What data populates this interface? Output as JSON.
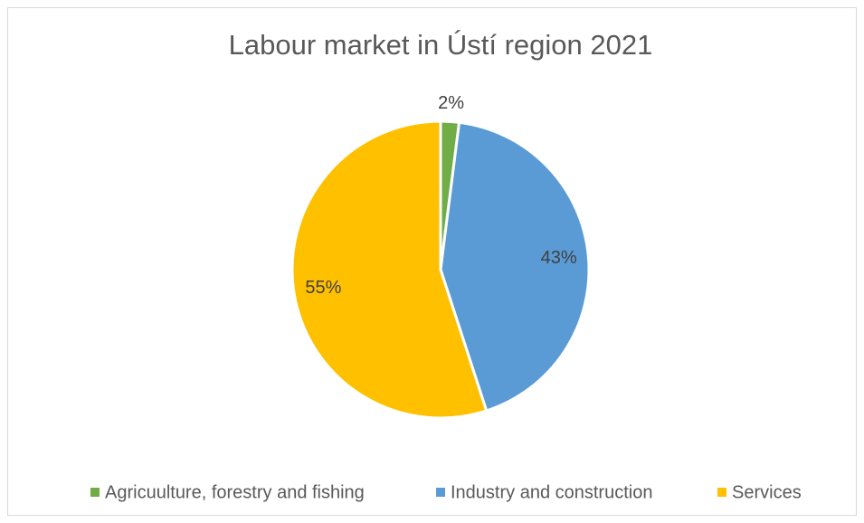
{
  "chart_data": {
    "type": "pie",
    "title": "Labour market in Ústí region 2021",
    "categories": [
      "Agricuulture, forestry and fishing",
      "Industry and construction",
      "Services"
    ],
    "values": [
      2,
      43,
      55
    ],
    "value_labels": [
      "2%",
      "43%",
      "55%"
    ],
    "colors": [
      "#70ad47",
      "#5b9bd5",
      "#ffc000"
    ],
    "legend": "bottom"
  }
}
